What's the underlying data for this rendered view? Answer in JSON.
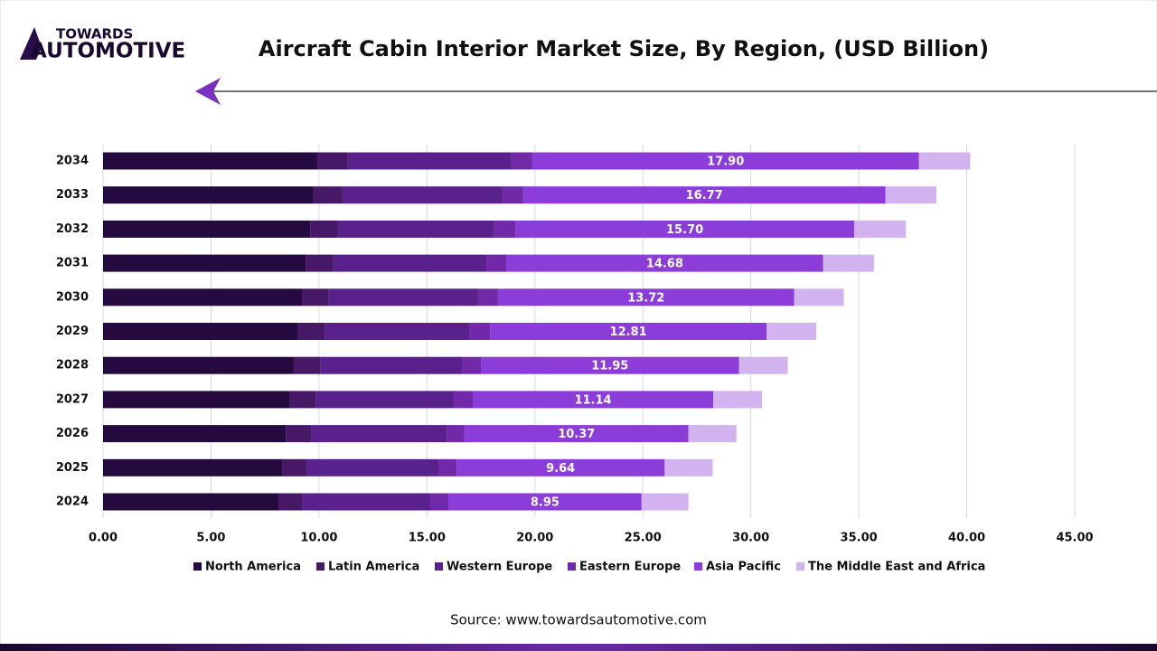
{
  "logo": [
    "TOWARDS",
    "AUTOMOTIVE"
  ],
  "source": "Source: www.towardsautomotive.com",
  "chart_data": {
    "type": "stacked-bar-horizontal",
    "title": "Aircraft Cabin Interior Market Size, By Region, (USD Billion)",
    "categories": [
      "2024",
      "2025",
      "2026",
      "2027",
      "2028",
      "2029",
      "2030",
      "2031",
      "2032",
      "2033",
      "2034"
    ],
    "series": [
      {
        "name": "North America",
        "color": "#250a3f",
        "values": [
          8.12,
          8.29,
          8.46,
          8.66,
          8.83,
          9.0,
          9.21,
          9.38,
          9.59,
          9.75,
          9.92
        ]
      },
      {
        "name": "Latin America",
        "color": "#461866",
        "values": [
          1.09,
          1.13,
          1.17,
          1.18,
          1.22,
          1.26,
          1.25,
          1.29,
          1.29,
          1.34,
          1.42
        ]
      },
      {
        "name": "Western Europe",
        "color": "#5a218c",
        "values": [
          5.98,
          6.11,
          6.28,
          6.4,
          6.57,
          6.73,
          6.91,
          7.08,
          7.24,
          7.41,
          7.54
        ]
      },
      {
        "name": "Eastern Europe",
        "color": "#7129a8",
        "values": [
          0.8,
          0.84,
          0.83,
          0.88,
          0.88,
          0.93,
          0.92,
          0.92,
          0.97,
          0.96,
          1.0
        ]
      },
      {
        "name": "Asia Pacific",
        "color": "#8c3cd8",
        "values": [
          8.95,
          9.64,
          10.37,
          11.14,
          11.95,
          12.81,
          13.72,
          14.68,
          15.7,
          16.77,
          17.9
        ],
        "value_labels": [
          "8.95",
          "9.64",
          "10.37",
          "11.14",
          "11.95",
          "12.81",
          "13.72",
          "14.68",
          "15.70",
          "16.77",
          "17.90"
        ]
      },
      {
        "name": "The Middle East and Africa",
        "color": "#d2b3ef",
        "values": [
          2.17,
          2.22,
          2.22,
          2.26,
          2.26,
          2.3,
          2.3,
          2.35,
          2.39,
          2.36,
          2.38
        ]
      }
    ],
    "xlim": [
      0,
      45
    ],
    "xticks": [
      {
        "value": 0,
        "label": "0.00"
      },
      {
        "value": 5,
        "label": "5.00"
      },
      {
        "value": 10,
        "label": "10.00"
      },
      {
        "value": 15,
        "label": "15.00"
      },
      {
        "value": 20,
        "label": "20.00"
      },
      {
        "value": 25,
        "label": "25.00"
      },
      {
        "value": 30,
        "label": "30.00"
      },
      {
        "value": 35,
        "label": "35.00"
      },
      {
        "value": 40,
        "label": "40.00"
      },
      {
        "value": 45,
        "label": "45.00"
      }
    ],
    "grid": true,
    "legend": "bottom"
  }
}
